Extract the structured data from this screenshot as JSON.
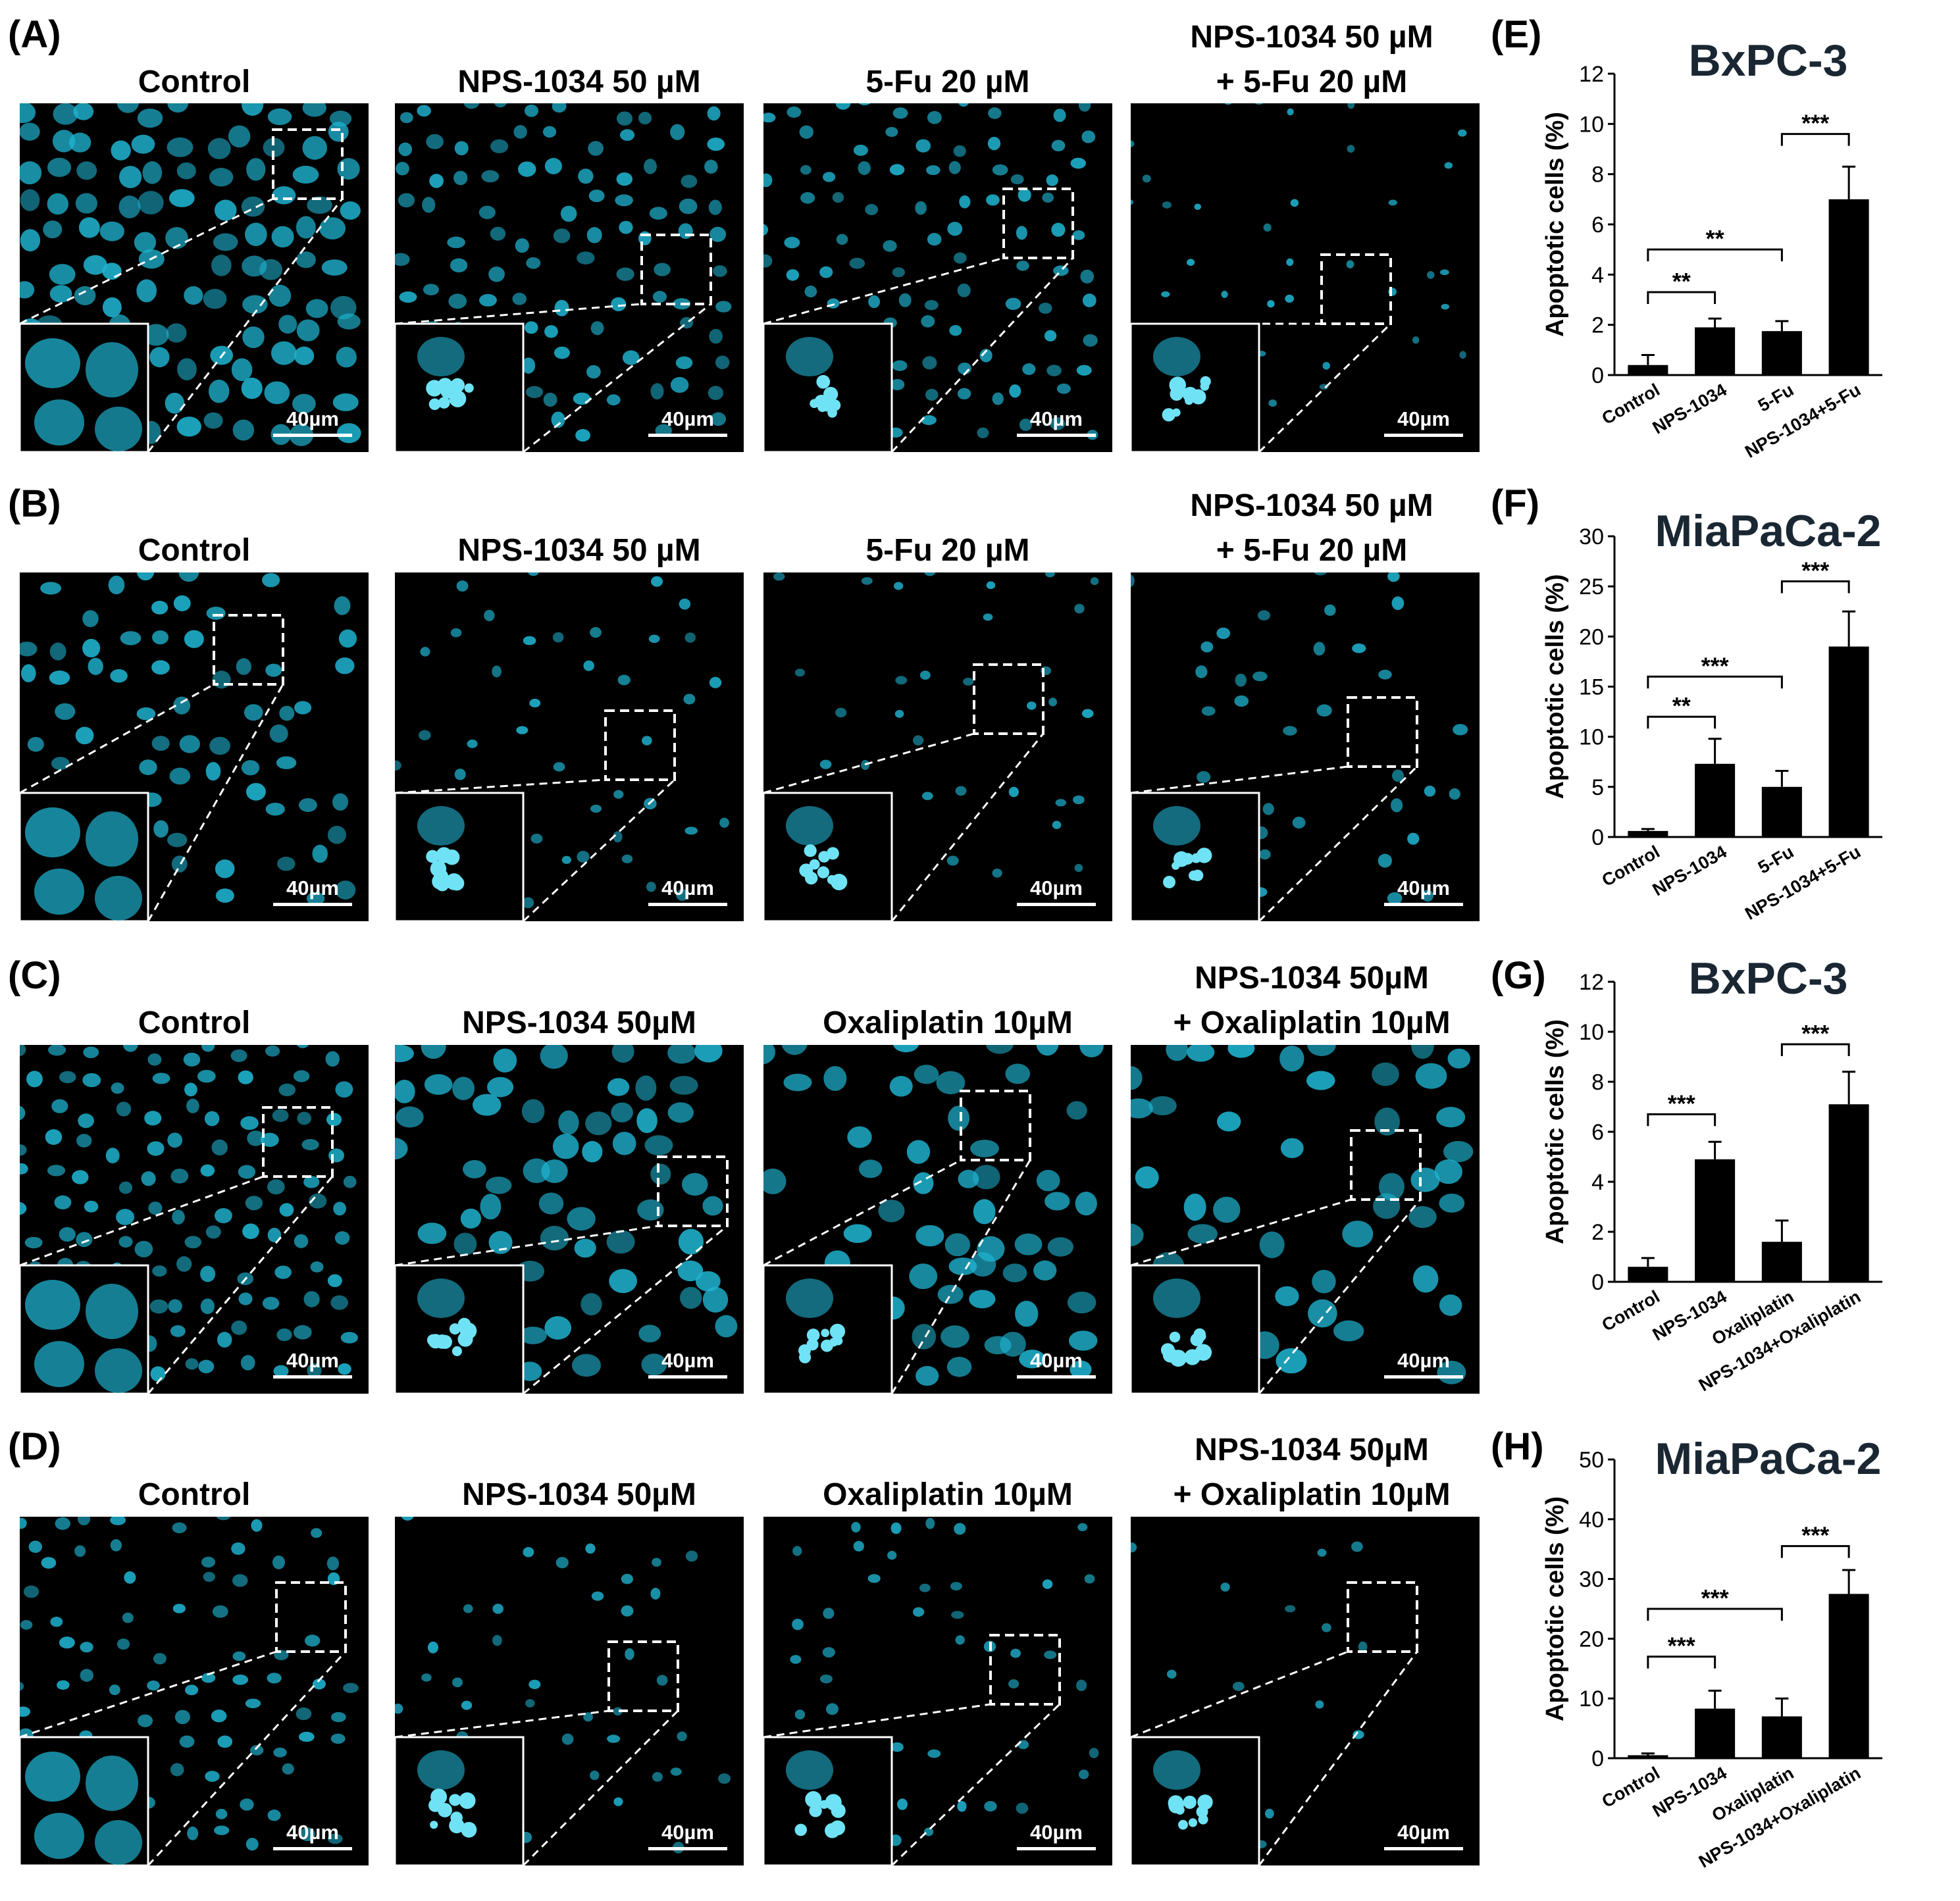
{
  "rows": [
    {
      "label": "(A)",
      "columns": [
        "Control",
        "NPS-1034 50 µM",
        "5-Fu 20 µM",
        [
          "NPS-1034 50 µM",
          "+ 5-Fu 20 µM"
        ]
      ],
      "scale_bar": "40µm",
      "cell_line": "BxPC-3"
    },
    {
      "label": "(B)",
      "columns": [
        "Control",
        "NPS-1034 50 µM",
        "5-Fu 20 µM",
        [
          "NPS-1034 50 µM",
          "+ 5-Fu 20 µM"
        ]
      ],
      "scale_bar": "40µm",
      "cell_line": "MiaPaCa-2"
    },
    {
      "label": "(C)",
      "columns": [
        "Control",
        "NPS-1034 50µM",
        "Oxaliplatin 10µM",
        [
          "NPS-1034 50µM",
          "+ Oxaliplatin 10µM"
        ]
      ],
      "scale_bar": "40µm",
      "cell_line": "BxPC-3"
    },
    {
      "label": "(D)",
      "columns": [
        "Control",
        "NPS-1034 50µM",
        "Oxaliplatin 10µM",
        [
          "NPS-1034 50µM",
          "+ Oxaliplatin 10µM"
        ]
      ],
      "scale_bar": "40µm",
      "cell_line": "MiaPaCa-2"
    }
  ],
  "colors": {
    "cell": "#1fb3d0",
    "background": "#000000",
    "bar": "#000000",
    "dashed": "#ffffff"
  },
  "chart_data": [
    {
      "panel": "(E)",
      "type": "bar",
      "title": "BxPC-3",
      "ylabel": "Apoptotic cells (%)",
      "categories": [
        "Control",
        "NPS-1034",
        "5-Fu",
        "NPS-1034+5-Fu"
      ],
      "values": [
        0.4,
        1.9,
        1.75,
        7.0
      ],
      "errors": [
        0.4,
        0.35,
        0.4,
        1.3
      ],
      "ylim": [
        0,
        12
      ],
      "yticks": [
        0,
        2,
        4,
        6,
        8,
        10,
        12
      ],
      "significance": [
        {
          "from": 0,
          "to": 1,
          "label": "**",
          "level": 3.3
        },
        {
          "from": 0,
          "to": 2,
          "label": "**",
          "level": 5.0
        },
        {
          "from": 2,
          "to": 3,
          "label": "***",
          "level": 9.6
        }
      ]
    },
    {
      "panel": "(F)",
      "type": "bar",
      "title": "MiaPaCa-2",
      "ylabel": "Apoptotic cells (%)",
      "categories": [
        "Control",
        "NPS-1034",
        "5-Fu",
        "NPS-1034+5-Fu"
      ],
      "values": [
        0.6,
        7.3,
        5.0,
        19.0
      ],
      "errors": [
        0.2,
        2.5,
        1.6,
        3.5
      ],
      "ylim": [
        0,
        30
      ],
      "yticks": [
        0,
        5,
        10,
        15,
        20,
        25,
        30
      ],
      "significance": [
        {
          "from": 0,
          "to": 1,
          "label": "**",
          "level": 12.0
        },
        {
          "from": 0,
          "to": 2,
          "label": "***",
          "level": 16.0
        },
        {
          "from": 2,
          "to": 3,
          "label": "***",
          "level": 25.5
        }
      ]
    },
    {
      "panel": "(G)",
      "type": "bar",
      "title": "BxPC-3",
      "ylabel": "Apoptotic cells (%)",
      "categories": [
        "Control",
        "NPS-1034",
        "Oxaliplatin",
        "NPS-1034+Oxaliplatin"
      ],
      "values": [
        0.6,
        4.9,
        1.6,
        7.1
      ],
      "errors": [
        0.35,
        0.7,
        0.85,
        1.3
      ],
      "ylim": [
        0,
        12
      ],
      "yticks": [
        0,
        2,
        4,
        6,
        8,
        10,
        12
      ],
      "significance": [
        {
          "from": 0,
          "to": 1,
          "label": "***",
          "level": 6.7
        },
        {
          "from": 2,
          "to": 3,
          "label": "***",
          "level": 9.5
        }
      ]
    },
    {
      "panel": "(H)",
      "type": "bar",
      "title": "MiaPaCa-2",
      "ylabel": "Apoptotic cells (%)",
      "categories": [
        "Control",
        "NPS-1034",
        "Oxaliplatin",
        "NPS-1034+Oxaliplatin"
      ],
      "values": [
        0.5,
        8.3,
        7.0,
        27.5
      ],
      "errors": [
        0.3,
        3.0,
        3.0,
        4.0
      ],
      "ylim": [
        0,
        50
      ],
      "yticks": [
        0,
        10,
        20,
        30,
        40,
        50
      ],
      "significance": [
        {
          "from": 0,
          "to": 1,
          "label": "***",
          "level": 17.0
        },
        {
          "from": 0,
          "to": 2,
          "label": "***",
          "level": 25.0
        },
        {
          "from": 2,
          "to": 3,
          "label": "***",
          "level": 35.5
        }
      ]
    }
  ]
}
